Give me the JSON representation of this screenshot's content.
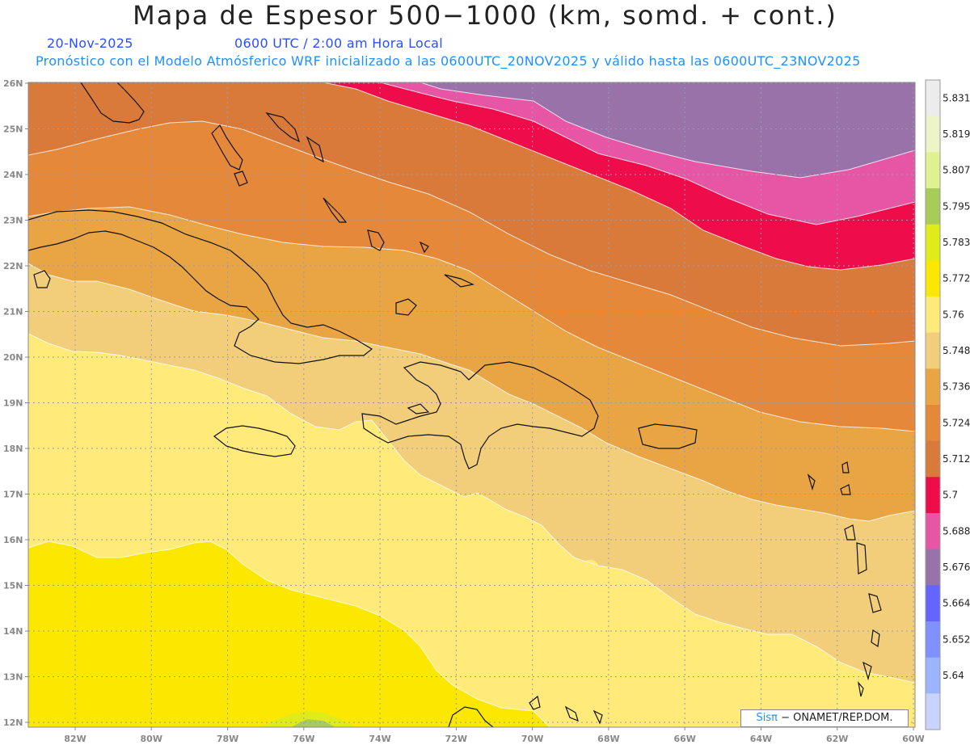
{
  "header": {
    "title": "Mapa de Espesor 500−1000 (km, somd. + cont.)",
    "date": "20-Nov-2025",
    "time": "0600 UTC / 2:00 am Hora Local",
    "description": "Pronóstico con el Modelo Atmósferico WRF inicializado a las 0600UTC_20NOV2025 y válido hasta las  0600UTC_23NOV2025"
  },
  "map": {
    "lat_labels": [
      "26N",
      "25N",
      "24N",
      "23N",
      "22N",
      "21N",
      "20N",
      "19N",
      "18N",
      "17N",
      "16N",
      "15N",
      "14N",
      "13N",
      "12N"
    ],
    "lon_labels": [
      "82W",
      "80W",
      "78W",
      "76W",
      "74W",
      "72W",
      "70W",
      "68W",
      "66W",
      "64W",
      "62W",
      "60W"
    ],
    "colors": {
      "c5830": "#ececec",
      "c5819": "#eef4c8",
      "c5807": "#dff290",
      "c5795": "#a8cc5a",
      "c5783": "#dfec1a",
      "c5772": "#fbe700",
      "c5760": "#ffea7a",
      "c5748": "#f2ce7a",
      "c5736": "#e9a444",
      "c5724": "#e6883a",
      "c5712": "#d97a3a",
      "c5700": "#ee0c4a",
      "c5688": "#e656a4",
      "c5676": "#9a72aa",
      "c5664": "#6464ff",
      "c5652": "#7f90ff",
      "c5640": "#9cb4ff",
      "cbelow": "#c8d4ff"
    }
  },
  "colorbar": {
    "labels": [
      "5.831",
      "5.819",
      "5.807",
      "5.795",
      "5.783",
      "5.772",
      "5.76",
      "5.748",
      "5.736",
      "5.724",
      "5.712",
      "5.7",
      "5.688",
      "5.676",
      "5.664",
      "5.652",
      "5.64"
    ],
    "colors": [
      "#ececec",
      "#eef4c8",
      "#dff290",
      "#a8cc5a",
      "#dfec1a",
      "#fbe700",
      "#ffea7a",
      "#f2ce7a",
      "#e9a444",
      "#e6883a",
      "#d97a3a",
      "#ee0c4a",
      "#e656a4",
      "#9a72aa",
      "#6464ff",
      "#7f90ff",
      "#9cb4ff",
      "#c8d4ff"
    ]
  },
  "credit": {
    "brand": "Sisπ",
    "text": "− ONAMET/REP.DOM."
  }
}
